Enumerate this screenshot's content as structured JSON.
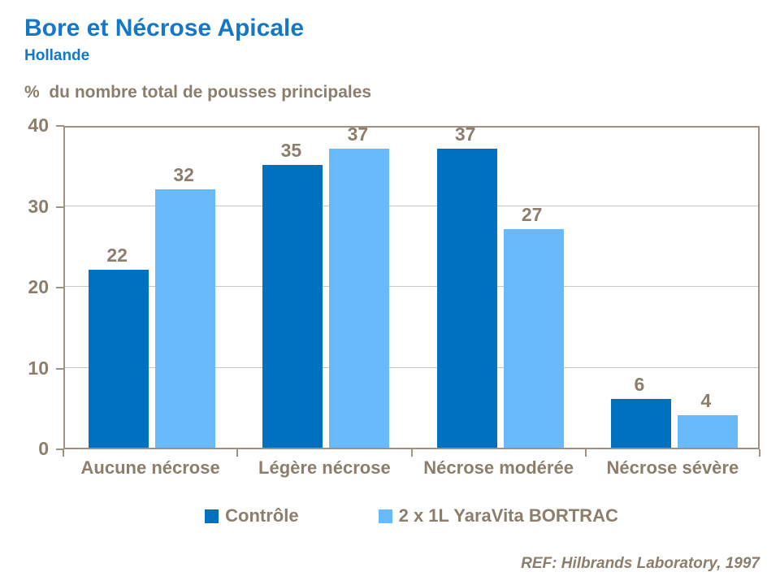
{
  "header": {
    "title": "Bore et Nécrose Apicale",
    "subtitle": "Hollande"
  },
  "axis_title": "%  du nombre total de pousses principales",
  "reference": "REF: Hilbrands Laboratory, 1997",
  "colors": {
    "title_blue": "#1577C8",
    "text_brown": "#8C7E6C",
    "axis_line": "#A09283",
    "gridline": "#C6C6C6",
    "series_control": "#0070C0",
    "series_bortrac": "#69BAFA"
  },
  "chart_data": {
    "type": "bar",
    "title": "Bore et Nécrose Apicale",
    "subtitle": "Hollande",
    "ylabel": "% du nombre total de pousses principales",
    "categories": [
      "Aucune nécrose",
      "Légère nécrose",
      "Nécrose modérée",
      "Nécrose sévère"
    ],
    "series": [
      {
        "name": "Contrôle",
        "color": "#0070C0",
        "values": [
          22,
          35,
          37,
          6
        ]
      },
      {
        "name": "2 x 1L YaraVita BORTRAC",
        "color": "#69BAFA",
        "values": [
          32,
          37,
          27,
          4
        ]
      }
    ],
    "ylim": [
      0,
      40
    ],
    "yticks": [
      0,
      10,
      20,
      30,
      40
    ],
    "grid": true,
    "legend_position": "bottom",
    "data_labels": true
  }
}
